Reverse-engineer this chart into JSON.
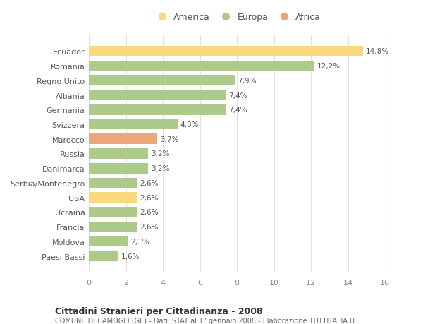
{
  "categories": [
    "Ecuador",
    "Romania",
    "Regno Unito",
    "Albania",
    "Germania",
    "Svizzera",
    "Marocco",
    "Russia",
    "Danimarca",
    "Serbia/Montenegro",
    "USA",
    "Ucraina",
    "Francia",
    "Moldova",
    "Paesi Bassi"
  ],
  "values": [
    14.8,
    12.2,
    7.9,
    7.4,
    7.4,
    4.8,
    3.7,
    3.2,
    3.2,
    2.6,
    2.6,
    2.6,
    2.6,
    2.1,
    1.6
  ],
  "labels": [
    "14,8%",
    "12,2%",
    "7,9%",
    "7,4%",
    "7,4%",
    "4,8%",
    "3,7%",
    "3,2%",
    "3,2%",
    "2,6%",
    "2,6%",
    "2,6%",
    "2,6%",
    "2,1%",
    "1,6%"
  ],
  "continents": [
    "America",
    "Europa",
    "Europa",
    "Europa",
    "Europa",
    "Europa",
    "Africa",
    "Europa",
    "Europa",
    "Europa",
    "America",
    "Europa",
    "Europa",
    "Europa",
    "Europa"
  ],
  "colors": {
    "America": "#F9D97C",
    "Europa": "#AECA8A",
    "Africa": "#E8A87C"
  },
  "xlim": [
    0,
    16
  ],
  "xticks": [
    0,
    2,
    4,
    6,
    8,
    10,
    12,
    14,
    16
  ],
  "title": "Cittadini Stranieri per Cittadinanza - 2008",
  "subtitle": "COMUNE DI CAMOGLI (GE) - Dati ISTAT al 1° gennaio 2008 - Elaborazione TUTTITALIA.IT",
  "bg_color": "#FFFFFF",
  "grid_color": "#E0E0E0",
  "bar_height": 0.72
}
